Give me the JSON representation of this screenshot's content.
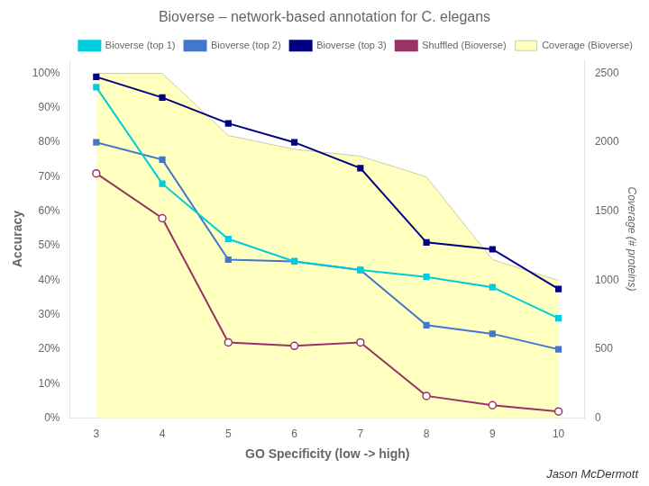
{
  "chart_data": {
    "type": "line",
    "title": "Bioverse – network-based annotation for C. elegans",
    "xlabel": "GO Specificity (low -> high)",
    "ylabel": "Accuracy",
    "y2label": "Coverage (# proteins)",
    "x": [
      3,
      4,
      5,
      6,
      7,
      8,
      9,
      10
    ],
    "series": [
      {
        "name": "Coverage (Bioverse)",
        "type": "area",
        "axis": "y2",
        "color": "#FFFFC0",
        "values": [
          2500,
          2500,
          2050,
          1950,
          1900,
          1750,
          1150,
          1000
        ]
      },
      {
        "name": "Bioverse (top 1)",
        "color": "#00CCDD",
        "marker": "square",
        "values": [
          0.96,
          0.68,
          0.52,
          0.455,
          0.43,
          0.41,
          0.38,
          0.29
        ]
      },
      {
        "name": "Bioverse (top 2)",
        "color": "#4477CC",
        "marker": "square",
        "values": [
          0.8,
          0.75,
          0.46,
          0.455,
          0.43,
          0.27,
          0.245,
          0.2
        ]
      },
      {
        "name": "Bioverse (top 3)",
        "color": "#000080",
        "marker": "square",
        "values": [
          0.99,
          0.93,
          0.855,
          0.8,
          0.725,
          0.51,
          0.49,
          0.375
        ]
      },
      {
        "name": "Shuffled (Bioverse)",
        "color": "#993366",
        "marker": "open_circle",
        "values": [
          0.71,
          0.58,
          0.22,
          0.21,
          0.22,
          0.065,
          0.038,
          0.02
        ]
      }
    ],
    "xlim": [
      2.6,
      10.4
    ],
    "xticks": [
      3,
      4,
      5,
      6,
      7,
      8,
      9,
      10
    ],
    "ylim": [
      0,
      1.04
    ],
    "yticks": [
      {
        "value": 0,
        "label": "0%"
      },
      {
        "value": 0.1,
        "label": "10%"
      },
      {
        "value": 0.2,
        "label": "20%"
      },
      {
        "value": 0.3,
        "label": "30%"
      },
      {
        "value": 0.4,
        "label": "40%"
      },
      {
        "value": 0.5,
        "label": "50%"
      },
      {
        "value": 0.6,
        "label": "60%"
      },
      {
        "value": 0.7,
        "label": "70%"
      },
      {
        "value": 0.8,
        "label": "80%"
      },
      {
        "value": 0.9,
        "label": "90%"
      },
      {
        "value": 1.0,
        "label": "100%"
      }
    ],
    "y2lim": [
      0,
      2600
    ],
    "y2ticks": [
      0,
      500,
      1000,
      1500,
      2000,
      2500
    ],
    "grid": false,
    "legend": "upper right",
    "annotations": [
      "Jason McDermott"
    ]
  }
}
